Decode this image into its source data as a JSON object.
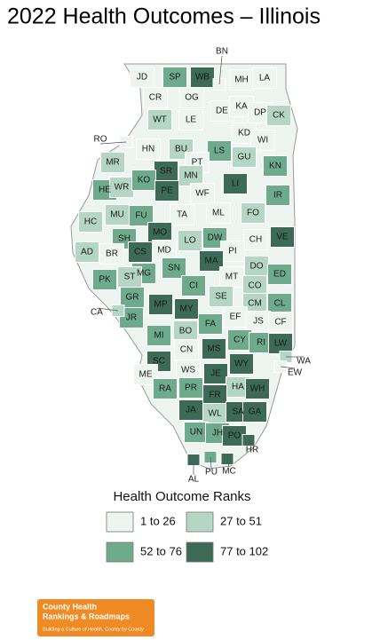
{
  "title": "2022 Health Outcomes – Illinois",
  "counties": [
    {
      "label": "JD",
      "color": "#eef5f1"
    },
    {
      "label": "SP",
      "color": "#6dab8c"
    },
    {
      "label": "WB",
      "color": "#3c6a56"
    },
    {
      "label": "MH",
      "color": "#eef5f1"
    },
    {
      "label": "LA",
      "color": "#eef5f1"
    },
    {
      "label": "CR",
      "color": "#eef5f1"
    },
    {
      "label": "OG",
      "color": "#eef5f1"
    },
    {
      "label": "DE",
      "color": "#eef5f1"
    },
    {
      "label": "KA",
      "color": "#eef5f1"
    },
    {
      "label": "DP",
      "color": "#eef5f1"
    },
    {
      "label": "CK",
      "color": "#b5d6c5"
    },
    {
      "label": "WT",
      "color": "#b5d6c5"
    },
    {
      "label": "LE",
      "color": "#eef5f1"
    },
    {
      "label": "KD",
      "color": "#eef5f1"
    },
    {
      "label": "WI",
      "color": "#eef5f1"
    },
    {
      "label": "HN",
      "color": "#eef5f1"
    },
    {
      "label": "BU",
      "color": "#b5d6c5"
    },
    {
      "label": "LS",
      "color": "#6dab8c"
    },
    {
      "label": "GU",
      "color": "#b5d6c5"
    },
    {
      "label": "MR",
      "color": "#b5d6c5"
    },
    {
      "label": "PT",
      "color": "#eef5f1"
    },
    {
      "label": "MN",
      "color": "#b5d6c5"
    },
    {
      "label": "SR",
      "color": "#3c6a56"
    },
    {
      "label": "KN",
      "color": "#6dab8c"
    },
    {
      "label": "HE",
      "color": "#6dab8c"
    },
    {
      "label": "WR",
      "color": "#b5d6c5"
    },
    {
      "label": "KO",
      "color": "#6dab8c"
    },
    {
      "label": "PE",
      "color": "#3c6a56"
    },
    {
      "label": "WF",
      "color": "#eef5f1"
    },
    {
      "label": "LI",
      "color": "#3c6a56"
    },
    {
      "label": "IR",
      "color": "#6dab8c"
    },
    {
      "label": "HC",
      "color": "#b5d6c5"
    },
    {
      "label": "MU",
      "color": "#b5d6c5"
    },
    {
      "label": "FU",
      "color": "#6dab8c"
    },
    {
      "label": "TA",
      "color": "#eef5f1"
    },
    {
      "label": "ML",
      "color": "#eef5f1"
    },
    {
      "label": "FO",
      "color": "#b5d6c5"
    },
    {
      "label": "CH",
      "color": "#eef5f1"
    },
    {
      "label": "VE",
      "color": "#3c6a56"
    },
    {
      "label": "MO",
      "color": "#3c6a56"
    },
    {
      "label": "SH",
      "color": "#6dab8c"
    },
    {
      "label": "LO",
      "color": "#b5d6c5"
    },
    {
      "label": "DW",
      "color": "#6dab8c"
    },
    {
      "label": "MD",
      "color": "#eef5f1"
    },
    {
      "label": "CS",
      "color": "#3c6a56"
    },
    {
      "label": "PI",
      "color": "#eef5f1"
    },
    {
      "label": "AD",
      "color": "#b5d6c5"
    },
    {
      "label": "BR",
      "color": "#eef5f1"
    },
    {
      "label": "MA",
      "color": "#3c6a56"
    },
    {
      "label": "SN",
      "color": "#6dab8c"
    },
    {
      "label": "DO",
      "color": "#b5d6c5"
    },
    {
      "label": "ED",
      "color": "#6dab8c"
    },
    {
      "label": "MG",
      "color": "#6dab8c"
    },
    {
      "label": "ST",
      "color": "#b5d6c5"
    },
    {
      "label": "PK",
      "color": "#6dab8c"
    },
    {
      "label": "MT",
      "color": "#eef5f1"
    },
    {
      "label": "CO",
      "color": "#b5d6c5"
    },
    {
      "label": "CI",
      "color": "#6dab8c"
    },
    {
      "label": "GR",
      "color": "#6dab8c"
    },
    {
      "label": "MP",
      "color": "#3c6a56"
    },
    {
      "label": "SE",
      "color": "#b5d6c5"
    },
    {
      "label": "CM",
      "color": "#b5d6c5"
    },
    {
      "label": "CL",
      "color": "#6dab8c"
    },
    {
      "label": "MY",
      "color": "#3c6a56"
    },
    {
      "label": "JR",
      "color": "#6dab8c"
    },
    {
      "label": "EF",
      "color": "#eef5f1"
    },
    {
      "label": "JS",
      "color": "#eef5f1"
    },
    {
      "label": "CF",
      "color": "#eef5f1"
    },
    {
      "label": "FA",
      "color": "#6dab8c"
    },
    {
      "label": "MI",
      "color": "#6dab8c"
    },
    {
      "label": "BO",
      "color": "#b5d6c5"
    },
    {
      "label": "CY",
      "color": "#6dab8c"
    },
    {
      "label": "RI",
      "color": "#6dab8c"
    },
    {
      "label": "LW",
      "color": "#3c6a56"
    },
    {
      "label": "CN",
      "color": "#eef5f1"
    },
    {
      "label": "MS",
      "color": "#3c6a56"
    },
    {
      "label": "SC",
      "color": "#3c6a56"
    },
    {
      "label": "WY",
      "color": "#3c6a56"
    },
    {
      "label": "ME",
      "color": "#eef5f1"
    },
    {
      "label": "WS",
      "color": "#eef5f1"
    },
    {
      "label": "JE",
      "color": "#3c6a56"
    },
    {
      "label": "RA",
      "color": "#6dab8c"
    },
    {
      "label": "PR",
      "color": "#6dab8c"
    },
    {
      "label": "HA",
      "color": "#b5d6c5"
    },
    {
      "label": "FR",
      "color": "#3c6a56"
    },
    {
      "label": "WH",
      "color": "#3c6a56"
    },
    {
      "label": "JA",
      "color": "#3c6a56"
    },
    {
      "label": "WL",
      "color": "#b5d6c5"
    },
    {
      "label": "SA",
      "color": "#3c6a56"
    },
    {
      "label": "GA",
      "color": "#3c6a56"
    },
    {
      "label": "UN",
      "color": "#6dab8c"
    },
    {
      "label": "JH",
      "color": "#6dab8c"
    },
    {
      "label": "PO",
      "color": "#3c6a56"
    },
    {
      "label": "BN",
      "color": "#eef5f1"
    },
    {
      "label": "RO",
      "color": "#eef5f1"
    },
    {
      "label": "CA",
      "color": "#b5d6c5"
    },
    {
      "label": "WA",
      "color": "#b5d6c5"
    },
    {
      "label": "EW",
      "color": "#eef5f1"
    },
    {
      "label": "HR",
      "color": "#3c6a56"
    },
    {
      "label": "AL",
      "color": "#3c6a56"
    },
    {
      "label": "PU",
      "color": "#6dab8c"
    },
    {
      "label": "MC",
      "color": "#3c6a56"
    }
  ],
  "legend": {
    "title": "Health Outcome Ranks",
    "items": [
      {
        "label": "1 to 26",
        "color": "#eef5f1"
      },
      {
        "label": "27 to 51",
        "color": "#b5d6c5"
      },
      {
        "label": "52 to 76",
        "color": "#6dab8c"
      },
      {
        "label": "77 to 102",
        "color": "#3c6a56"
      }
    ]
  },
  "logo": {
    "line1": "County Health",
    "line2": "Rankings & Roadmaps",
    "tagline": "Building a Culture of Health, County by County"
  }
}
